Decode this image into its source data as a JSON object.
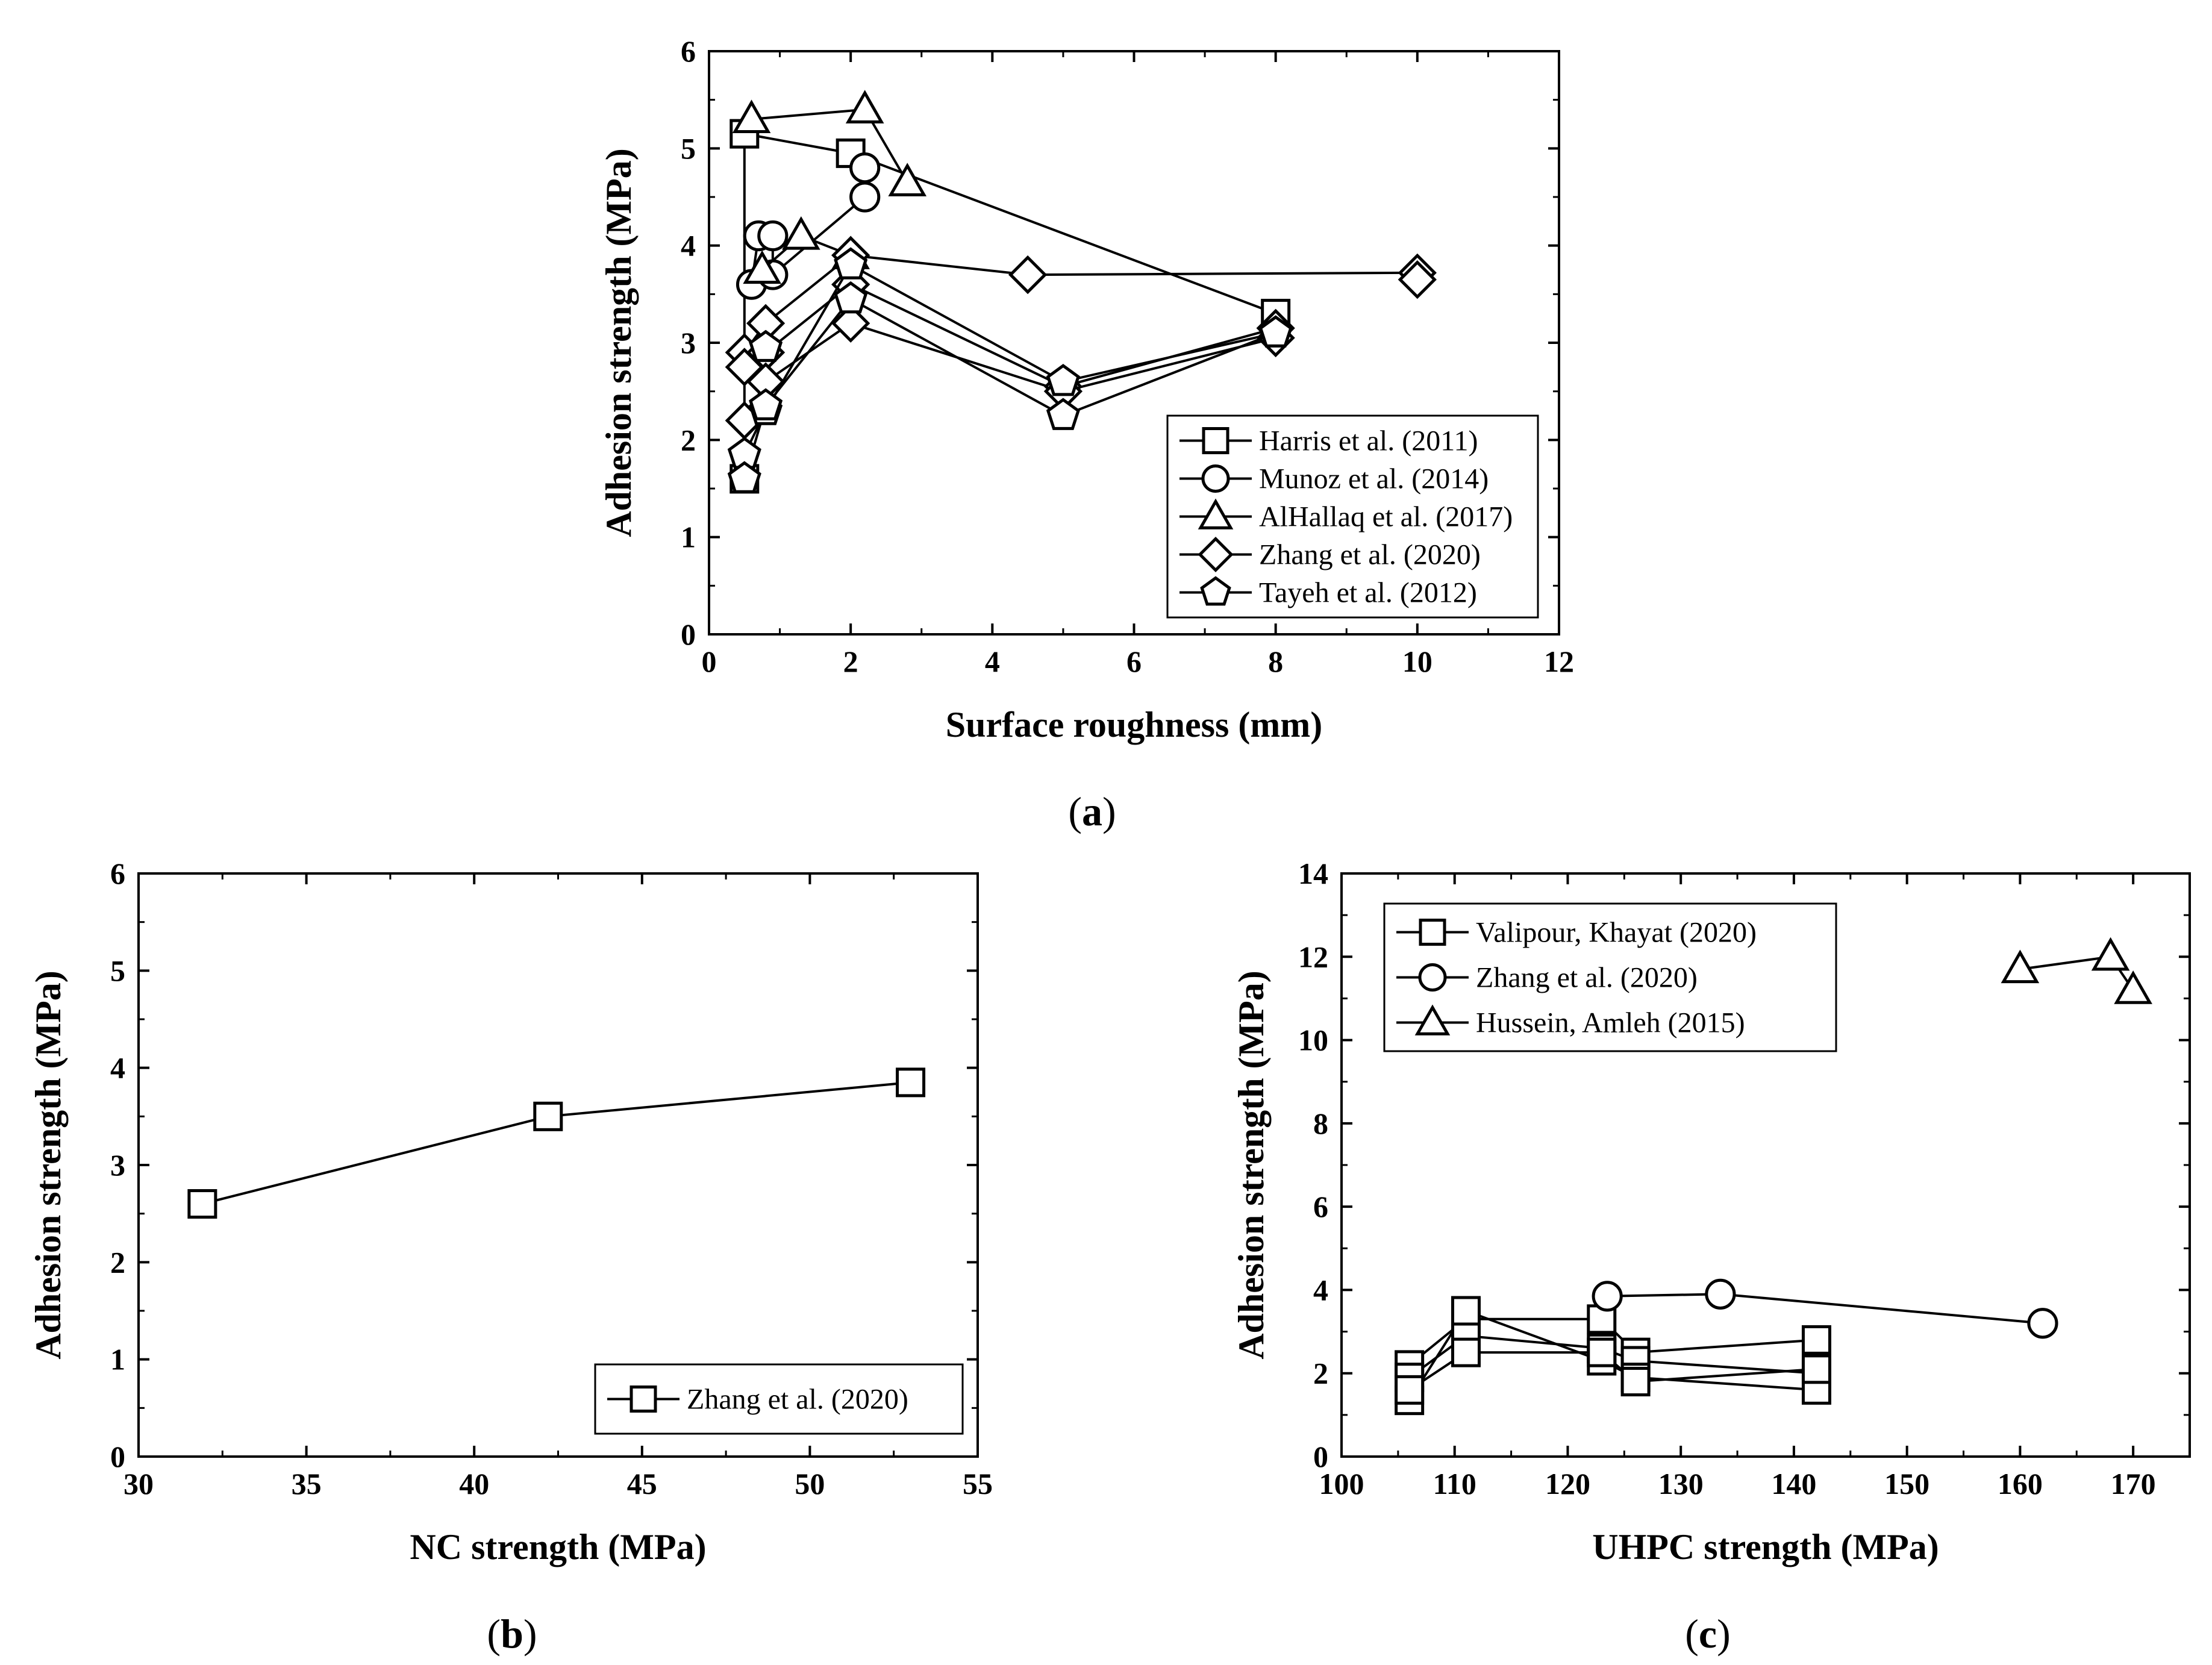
{
  "figure_labels": {
    "a": "a",
    "b": "b",
    "c": "c"
  },
  "chart_data": [
    {
      "id": "a",
      "type": "line",
      "panel_label": "a",
      "xlabel": "Surface roughness (mm)",
      "ylabel": "Adhesion strength (MPa)",
      "xlim": [
        0,
        12
      ],
      "ylim": [
        0,
        6
      ],
      "xticks": [
        "0",
        "2",
        "4",
        "6",
        "8",
        "10",
        "12"
      ],
      "yticks": [
        "0",
        "1",
        "2",
        "3",
        "4",
        "5",
        "6"
      ],
      "legend_position": "bottom-right",
      "series": [
        {
          "name": "Harris et al. (2011)",
          "marker": "square",
          "lines": [
            [
              [
                0.5,
                1.6
              ],
              [
                0.5,
                5.15
              ],
              [
                2.0,
                4.95
              ],
              [
                8.0,
                3.3
              ]
            ]
          ]
        },
        {
          "name": "Munoz et al. (2014)",
          "marker": "circle",
          "lines": [
            [
              [
                0.6,
                3.6
              ],
              [
                0.7,
                4.1
              ],
              [
                0.9,
                4.1
              ],
              [
                0.9,
                3.7
              ],
              [
                2.2,
                4.5
              ],
              [
                2.2,
                4.8
              ]
            ]
          ]
        },
        {
          "name": "AlHallaq et al. (2017)",
          "marker": "triangle",
          "lines": [
            [
              [
                0.6,
                5.3
              ],
              [
                2.2,
                5.4
              ],
              [
                2.8,
                4.65
              ]
            ],
            [
              [
                0.75,
                3.75
              ],
              [
                1.3,
                4.1
              ],
              [
                2.0,
                3.9
              ]
            ]
          ]
        },
        {
          "name": "Zhang et al. (2020)",
          "marker": "diamond",
          "lines": [
            [
              [
                0.5,
                2.9
              ],
              [
                0.8,
                3.2
              ],
              [
                2.0,
                3.9
              ],
              [
                4.5,
                3.7
              ],
              [
                10.0,
                3.72
              ]
            ],
            [
              [
                0.5,
                2.75
              ],
              [
                0.8,
                2.9
              ],
              [
                2.0,
                3.6
              ],
              [
                5.0,
                2.55
              ],
              [
                8.0,
                3.15
              ]
            ],
            [
              [
                0.5,
                2.2
              ],
              [
                0.8,
                2.6
              ],
              [
                2.0,
                3.2
              ],
              [
                5.0,
                2.5
              ],
              [
                8.0,
                3.05
              ]
            ],
            [
              [
                10.0,
                3.65
              ]
            ]
          ]
        },
        {
          "name": "Tayeh et al. (2012)",
          "marker": "pentagon",
          "lines": [
            [
              [
                0.5,
                1.85
              ],
              [
                0.8,
                2.3
              ],
              [
                2.0,
                3.8
              ],
              [
                5.0,
                2.6
              ],
              [
                8.0,
                3.1
              ]
            ],
            [
              [
                0.5,
                1.6
              ],
              [
                0.8,
                2.35
              ],
              [
                2.0,
                3.45
              ],
              [
                5.0,
                2.25
              ],
              [
                8.0,
                3.1
              ]
            ],
            [
              [
                0.8,
                2.95
              ]
            ]
          ]
        }
      ]
    },
    {
      "id": "b",
      "type": "line",
      "panel_label": "b",
      "xlabel": "NC strength (MPa)",
      "ylabel": "Adhesion strength (MPa)",
      "xlim": [
        30,
        55
      ],
      "ylim": [
        0,
        6
      ],
      "xticks": [
        "30",
        "35",
        "40",
        "45",
        "50",
        "55"
      ],
      "yticks": [
        "0",
        "1",
        "2",
        "3",
        "4",
        "5",
        "6"
      ],
      "legend_position": "bottom-right",
      "series": [
        {
          "name": "Zhang et al. (2020)",
          "marker": "square",
          "lines": [
            [
              [
                31.9,
                2.6
              ],
              [
                42.2,
                3.5
              ],
              [
                53.0,
                3.85
              ]
            ]
          ]
        }
      ]
    },
    {
      "id": "c",
      "type": "line",
      "panel_label": "c",
      "xlabel": "UHPC strength (MPa)",
      "ylabel": "Adhesion strength (MPa)",
      "xlim": [
        100,
        175
      ],
      "ylim": [
        0,
        14
      ],
      "xticks": [
        "100",
        "110",
        "120",
        "130",
        "140",
        "150",
        "160",
        "170"
      ],
      "yticks": [
        "0",
        "2",
        "4",
        "6",
        "8",
        "10",
        "12",
        "14"
      ],
      "legend_position": "top-left",
      "series": [
        {
          "name": "Valipour, Khayat (2020)",
          "marker": "square",
          "lines": [
            [
              [
                106,
                2.2
              ],
              [
                111,
                3.3
              ],
              [
                123,
                3.3
              ],
              [
                126,
                2.5
              ],
              [
                142,
                2.8
              ]
            ],
            [
              [
                106,
                1.9
              ],
              [
                111,
                2.9
              ],
              [
                123,
                2.6
              ],
              [
                126,
                2.3
              ],
              [
                142,
                2.0
              ]
            ],
            [
              [
                106,
                1.35
              ],
              [
                111,
                3.5
              ],
              [
                123,
                2.3
              ],
              [
                126,
                1.9
              ],
              [
                142,
                1.6
              ]
            ],
            [
              [
                106,
                1.6
              ],
              [
                111,
                2.5
              ],
              [
                123,
                2.5
              ],
              [
                126,
                1.8
              ],
              [
                142,
                2.1
              ]
            ]
          ]
        },
        {
          "name": "Zhang et al. (2020)",
          "marker": "circle",
          "lines": [
            [
              [
                123.5,
                3.85
              ],
              [
                133.5,
                3.9
              ],
              [
                162,
                3.2
              ]
            ]
          ]
        },
        {
          "name": "Hussein, Amleh (2015)",
          "marker": "triangle",
          "lines": [
            [
              [
                160,
                11.7
              ],
              [
                168,
                12.0
              ],
              [
                170,
                11.2
              ]
            ]
          ]
        }
      ]
    }
  ]
}
